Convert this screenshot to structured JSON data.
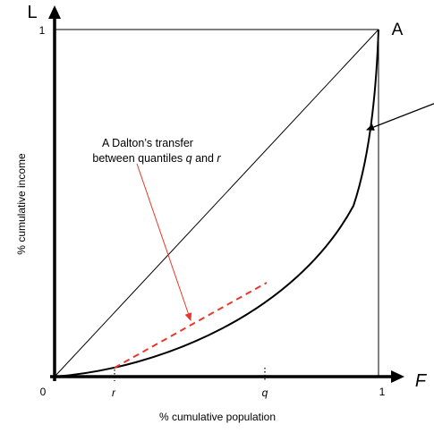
{
  "diagram": {
    "axis_letter_y": "L",
    "axis_letter_x": "F",
    "corner_label": "A",
    "y_tick_one": "1",
    "x_tick_zero": "0",
    "x_tick_one": "1",
    "x_tick_r": "r",
    "x_tick_q": "q",
    "y_axis_label": "% cumulative income",
    "x_axis_label": "% cumulative population",
    "annotation_line1": "A Dalton’s transfer",
    "annotation_line2_prefix": "between quantiles ",
    "annotation_q": "q",
    "annotation_and": " and ",
    "annotation_r": "r",
    "colors": {
      "axes": "#000000",
      "curve": "#000000",
      "transfer": "#e8382b",
      "arrow": "#e8382b"
    }
  }
}
